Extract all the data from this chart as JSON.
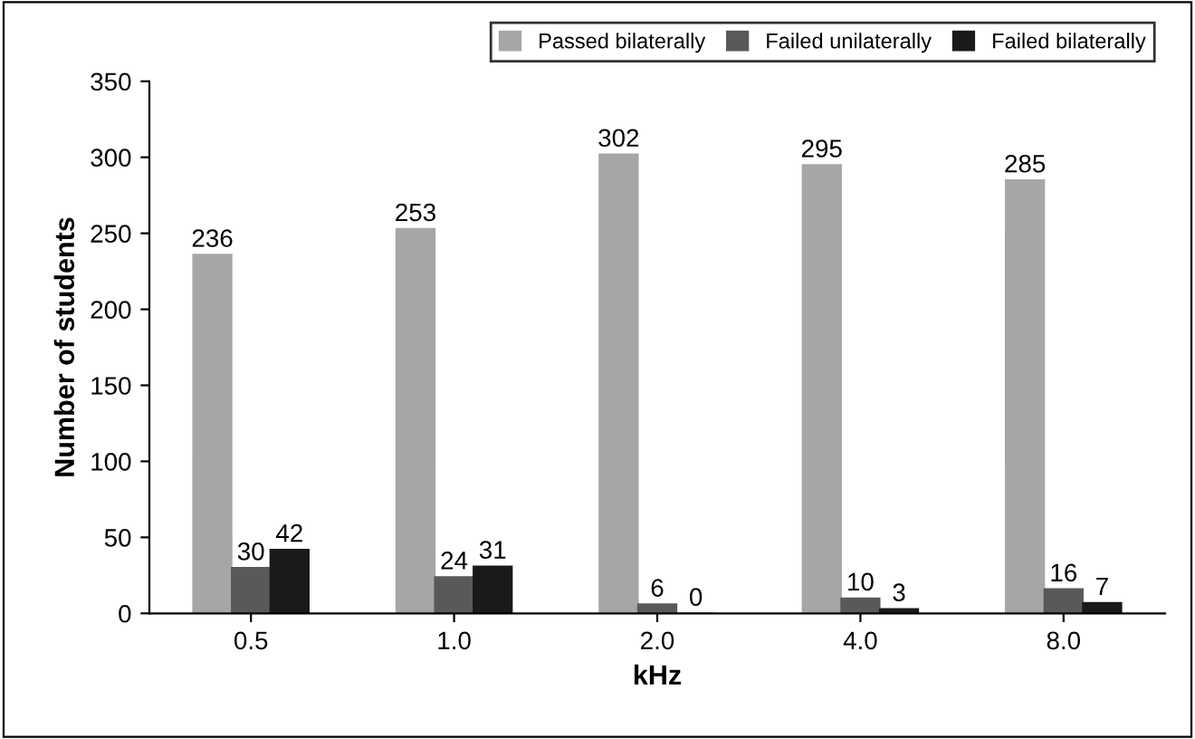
{
  "chart_data": {
    "type": "bar",
    "xlabel": "kHz",
    "ylabel": "Number of students",
    "categories": [
      "0.5",
      "1.0",
      "2.0",
      "4.0",
      "8.0"
    ],
    "series": [
      {
        "name": "Passed bilaterally",
        "color": "#a6a6a6",
        "values": [
          236,
          253,
          302,
          295,
          285
        ]
      },
      {
        "name": "Failed unilaterally",
        "color": "#595959",
        "values": [
          30,
          24,
          6,
          10,
          16
        ]
      },
      {
        "name": "Failed bilaterally",
        "color": "#1a1a1a",
        "values": [
          42,
          31,
          0,
          3,
          7
        ]
      }
    ],
    "ylim": [
      0,
      350
    ],
    "yticks": [
      0,
      50,
      100,
      150,
      200,
      250,
      300,
      350
    ],
    "data_labels": true,
    "grid": false,
    "legend": "top right"
  }
}
